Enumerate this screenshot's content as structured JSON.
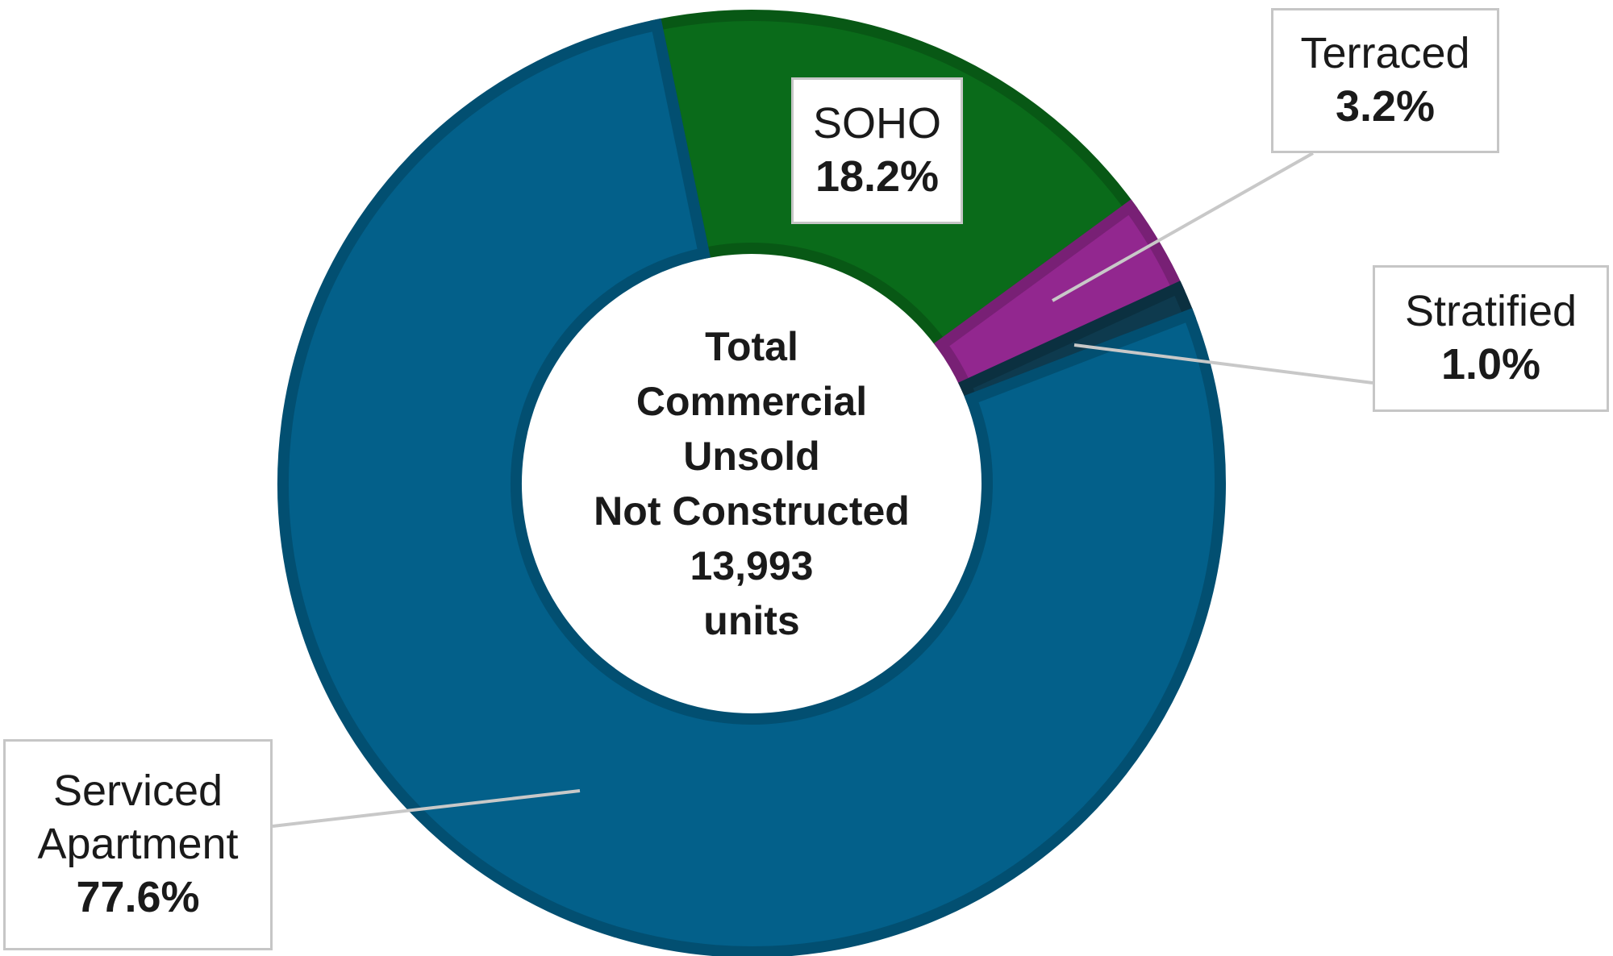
{
  "chart_data": {
    "type": "donut",
    "categories": [
      "SOHO",
      "Terraced",
      "Stratified",
      "Serviced Apartment"
    ],
    "values": [
      18.2,
      3.2,
      1.0,
      77.6
    ],
    "value_labels": [
      "18.2%",
      "3.2%",
      "1.0%",
      "77.6%"
    ],
    "colors": [
      "#0a6b1a",
      "#92278f",
      "#0e3a4e",
      "#03608a"
    ],
    "center_text": [
      "Total",
      "Commercial",
      "Unsold",
      "Not Constructed",
      "13,993",
      "units"
    ]
  }
}
